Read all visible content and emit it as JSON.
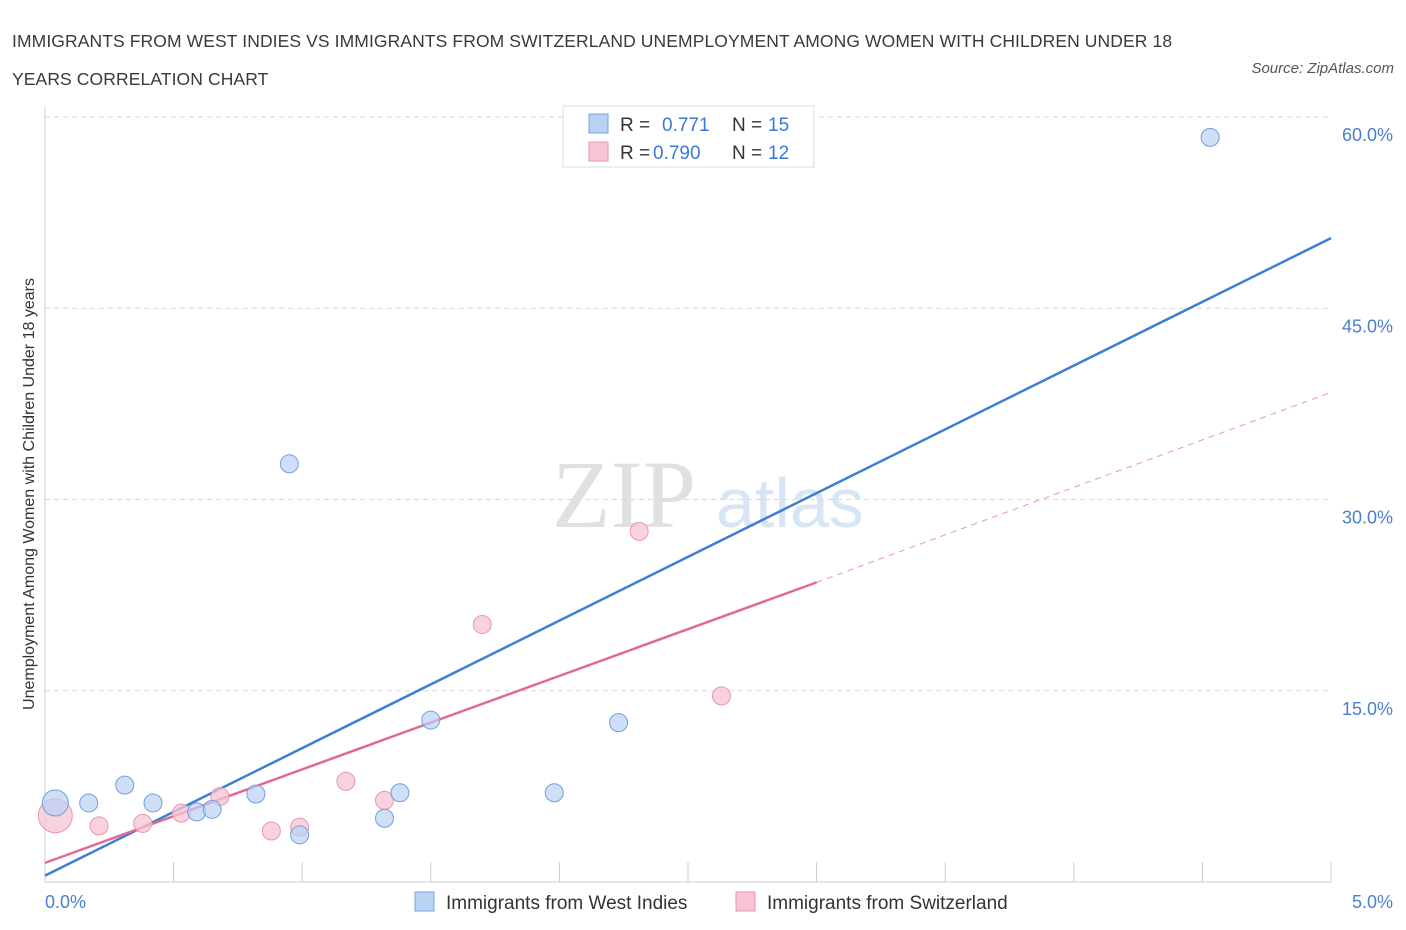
{
  "header": {
    "title": "IMMIGRANTS FROM WEST INDIES VS IMMIGRANTS FROM SWITZERLAND UNEMPLOYMENT AMONG WOMEN WITH CHILDREN UNDER 18 YEARS CORRELATION CHART",
    "source": "Source: ZipAtlas.com"
  },
  "watermark": {
    "zip": "ZIP",
    "atlas": "atlas"
  },
  "colors": {
    "west_indies": "#3d7fd4",
    "west_indies_fill": "#b9d2f3",
    "switzerland": "#e06a93",
    "switzerland_fill": "#f6c4d4",
    "grid": "#d9d9d9",
    "axis_text": "#4a7fd0"
  },
  "legend": {
    "rows": [
      {
        "r_label": "R =",
        "r_value": "0.771",
        "n_label": "N =",
        "n_value": "15"
      },
      {
        "r_label": "R =",
        "r_value": "0.790",
        "n_label": "N =",
        "n_value": "12"
      }
    ]
  },
  "chart_data": {
    "type": "scatter",
    "title": "IMMIGRANTS FROM WEST INDIES VS IMMIGRANTS FROM SWITZERLAND UNEMPLOYMENT AMONG WOMEN WITH CHILDREN UNDER 18 YEARS CORRELATION CHART",
    "xlabel": "",
    "ylabel": "Unemployment Among Women with Children Under 18 years",
    "xlim": [
      0,
      5
    ],
    "ylim": [
      0,
      60
    ],
    "x_tick_labels": [
      "0.0%",
      "5.0%"
    ],
    "y_ticks": [
      15,
      30,
      45,
      60
    ],
    "y_tick_labels": [
      "15.0%",
      "30.0%",
      "45.0%",
      "60.0%"
    ],
    "grid": true,
    "legend_position": "top-center",
    "series": [
      {
        "name": "Immigrants from West Indies",
        "r": 0.771,
        "n": 15,
        "points": [
          {
            "x": 0.04,
            "y": 6.2,
            "size": "large"
          },
          {
            "x": 0.17,
            "y": 6.2
          },
          {
            "x": 0.31,
            "y": 7.6
          },
          {
            "x": 0.42,
            "y": 6.2
          },
          {
            "x": 0.59,
            "y": 5.5
          },
          {
            "x": 0.65,
            "y": 5.7
          },
          {
            "x": 0.82,
            "y": 6.9
          },
          {
            "x": 0.95,
            "y": 32.8
          },
          {
            "x": 0.99,
            "y": 3.7
          },
          {
            "x": 1.32,
            "y": 5.0
          },
          {
            "x": 1.38,
            "y": 7.0
          },
          {
            "x": 1.5,
            "y": 12.7
          },
          {
            "x": 1.98,
            "y": 7.0
          },
          {
            "x": 2.23,
            "y": 12.5
          },
          {
            "x": 4.53,
            "y": 58.4
          }
        ],
        "trend": {
          "x": [
            0,
            5
          ],
          "y": [
            0.5,
            50.5
          ]
        }
      },
      {
        "name": "Immigrants from Switzerland",
        "r": 0.79,
        "n": 12,
        "points": [
          {
            "x": 0.04,
            "y": 5.2,
            "size": "large"
          },
          {
            "x": 0.21,
            "y": 4.4
          },
          {
            "x": 0.38,
            "y": 4.6
          },
          {
            "x": 0.53,
            "y": 5.4
          },
          {
            "x": 0.68,
            "y": 6.7
          },
          {
            "x": 0.88,
            "y": 4.0
          },
          {
            "x": 0.99,
            "y": 4.3
          },
          {
            "x": 1.17,
            "y": 7.9
          },
          {
            "x": 1.32,
            "y": 6.4
          },
          {
            "x": 1.7,
            "y": 20.2
          },
          {
            "x": 2.31,
            "y": 27.5
          },
          {
            "x": 2.63,
            "y": 14.6
          }
        ],
        "trend": {
          "x": [
            0,
            3
          ],
          "y": [
            1.5,
            23.5
          ]
        },
        "trend_extension": {
          "x": [
            3,
            5
          ],
          "y": [
            23.5,
            38.4
          ]
        }
      }
    ]
  }
}
